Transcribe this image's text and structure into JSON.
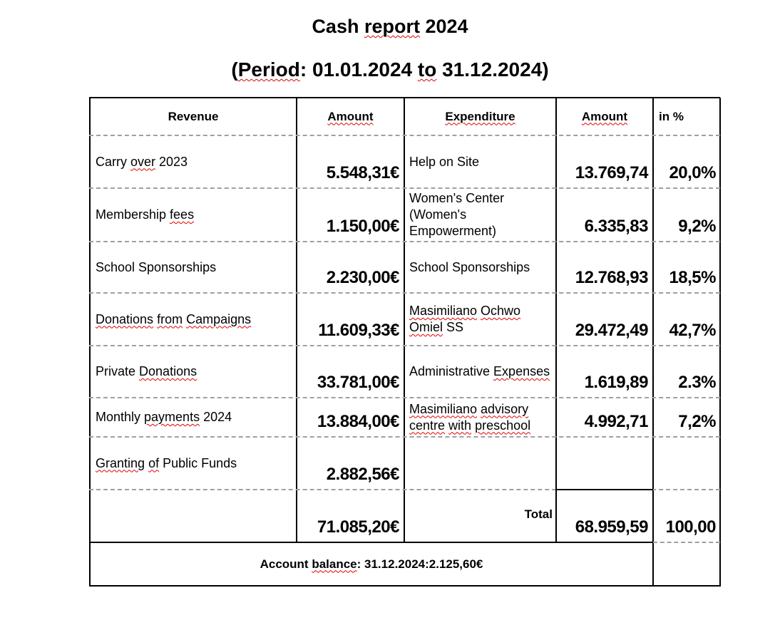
{
  "title": [
    {
      "t": "Cash "
    },
    {
      "t": "report",
      "err": true
    },
    {
      "t": " 2024"
    }
  ],
  "period": [
    {
      "t": "("
    },
    {
      "t": "Period",
      "err": true
    },
    {
      "t": ": 01.01.2024 "
    },
    {
      "t": "to",
      "err": true
    },
    {
      "t": " 31.12.2024)"
    }
  ],
  "headers": {
    "revenue": [
      {
        "t": "Revenue"
      }
    ],
    "amount1": [
      {
        "t": "Amount",
        "err": true
      }
    ],
    "expenditure": [
      {
        "t": "Expenditure",
        "err": true
      }
    ],
    "amount2": [
      {
        "t": "Amount",
        "err": true
      }
    ],
    "percent": [
      {
        "t": "in %"
      }
    ]
  },
  "rows": [
    {
      "revenue": [
        {
          "t": "Carry "
        },
        {
          "t": "over",
          "err": true
        },
        {
          "t": " 2023"
        }
      ],
      "rev_amount": "5.548,31€",
      "expenditure": [
        {
          "t": "Help on Site"
        }
      ],
      "exp_amount": "13.769,74",
      "percent": "20,0%"
    },
    {
      "revenue": [
        {
          "t": "Membership "
        },
        {
          "t": "fees",
          "err": true
        }
      ],
      "rev_amount": "1.150,00€",
      "expenditure": [
        {
          "t": "Women's Center (Women's Empowerment)"
        }
      ],
      "exp_amount": "6.335,83",
      "percent": "9,2%"
    },
    {
      "revenue": [
        {
          "t": "School Sponsorships"
        }
      ],
      "rev_amount": "2.230,00€",
      "expenditure": [
        {
          "t": "School Sponsorships"
        }
      ],
      "exp_amount": "12.768,93",
      "percent": "18,5%"
    },
    {
      "revenue": [
        {
          "t": "Donations",
          "err": true
        },
        {
          "t": " "
        },
        {
          "t": "from",
          "err": true
        },
        {
          "t": " "
        },
        {
          "t": "Campaigns",
          "err": true
        }
      ],
      "rev_amount": "11.609,33€",
      "expenditure": [
        {
          "t": "Masimiliano",
          "err": true
        },
        {
          "t": " "
        },
        {
          "t": "Ochwo",
          "err": true
        },
        {
          "t": " "
        },
        {
          "t": "Omiel",
          "err": true
        },
        {
          "t": " SS"
        }
      ],
      "exp_amount": "29.472,49",
      "percent": "42,7%"
    },
    {
      "revenue": [
        {
          "t": "Private "
        },
        {
          "t": "Donations",
          "err": true
        }
      ],
      "rev_amount": "33.781,00€",
      "expenditure": [
        {
          "t": "Administrative "
        },
        {
          "t": "Expenses",
          "err": true
        }
      ],
      "exp_amount": "1.619,89",
      "percent": "2.3%"
    },
    {
      "revenue": [
        {
          "t": "Monthly "
        },
        {
          "t": "payments",
          "err": true
        },
        {
          "t": " 2024"
        }
      ],
      "rev_amount": "13.884,00€",
      "expenditure": [
        {
          "t": "Masimiliano",
          "err": true
        },
        {
          "t": " "
        },
        {
          "t": "advisory",
          "err": true
        },
        {
          "t": " "
        },
        {
          "t": "centre",
          "err": true
        },
        {
          "t": " "
        },
        {
          "t": "with",
          "err": true
        },
        {
          "t": " "
        },
        {
          "t": "preschool",
          "err": true
        }
      ],
      "exp_amount": "4.992,71",
      "percent": "7,2%"
    },
    {
      "revenue": [
        {
          "t": "Granting",
          "err": true
        },
        {
          "t": " "
        },
        {
          "t": "of",
          "err": true
        },
        {
          "t": " Public Funds"
        }
      ],
      "rev_amount": "2.882,56€",
      "expenditure": [],
      "exp_amount": "",
      "percent": ""
    }
  ],
  "totals": {
    "rev_amount": "71.085,20€",
    "label": "Total",
    "exp_amount": "68.959,59",
    "percent": "100,00"
  },
  "balance": [
    {
      "t": "Account "
    },
    {
      "t": "balance",
      "err": true
    },
    {
      "t": ": 31.12.2024:2.125,60€"
    }
  ]
}
